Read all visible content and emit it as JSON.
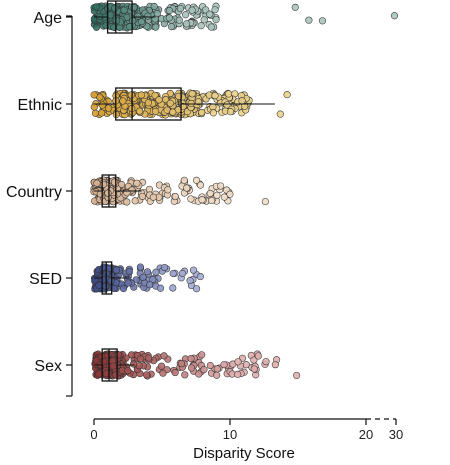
{
  "chart_data": {
    "type": "scatter",
    "subtype": "jittered strip plot with box plots",
    "title": "",
    "xlabel": "Disparity Score",
    "ylabel": "",
    "xlim": [
      0,
      30
    ],
    "x_axis_break": {
      "from": 20,
      "to": 30
    },
    "x_ticks": [
      {
        "value": 0,
        "label": "0"
      },
      {
        "value": 10,
        "label": "10"
      },
      {
        "value": 20,
        "label": "20"
      },
      {
        "value": 30,
        "label": "30"
      }
    ],
    "categories": [
      "Age",
      "Ethnic",
      "Country",
      "SED",
      "Sex"
    ],
    "series": [
      {
        "category": "Age",
        "color": "#2e6e60",
        "color_light": "#a8c4bd",
        "box": {
          "q1": 1.0,
          "median": 1.6,
          "q3": 2.8,
          "whisker_low": 0,
          "whisker_high": 4.5
        },
        "spread_max": 9.0,
        "outliers": [
          14.8,
          15.8,
          16.8,
          29.5
        ],
        "n_points": 320
      },
      {
        "category": "Ethnic",
        "color": "#d8a030",
        "color_light": "#ead08a",
        "box": {
          "q1": 1.6,
          "median": 2.8,
          "q3": 6.4,
          "whisker_low": 0,
          "whisker_high": 13.3
        },
        "spread_max": 11.5,
        "outliers": [
          13.7,
          14.2
        ],
        "n_points": 360
      },
      {
        "category": "Country",
        "color": "#d8b090",
        "color_light": "#f0dcc4",
        "box": {
          "q1": 0.6,
          "median": 1.1,
          "q3": 1.6,
          "whisker_low": 0,
          "whisker_high": 3.5
        },
        "spread_max": 10.0,
        "outliers": [
          12.6
        ],
        "n_points": 260
      },
      {
        "category": "SED",
        "color": "#3a4a88",
        "color_light": "#a4acd4",
        "box": {
          "q1": 0.6,
          "median": 0.9,
          "q3": 1.3,
          "whisker_low": 0,
          "whisker_high": 2.6
        },
        "spread_max": 8.2,
        "outliers": [],
        "n_points": 210
      },
      {
        "category": "Sex",
        "color": "#8c3232",
        "color_light": "#e0aeae",
        "box": {
          "q1": 0.6,
          "median": 1.1,
          "q3": 1.7,
          "whisker_low": 0,
          "whisker_high": 3.0
        },
        "spread_max": 13.5,
        "outliers": [
          14.9
        ],
        "n_points": 330
      }
    ],
    "grid": false,
    "legend": "none"
  }
}
